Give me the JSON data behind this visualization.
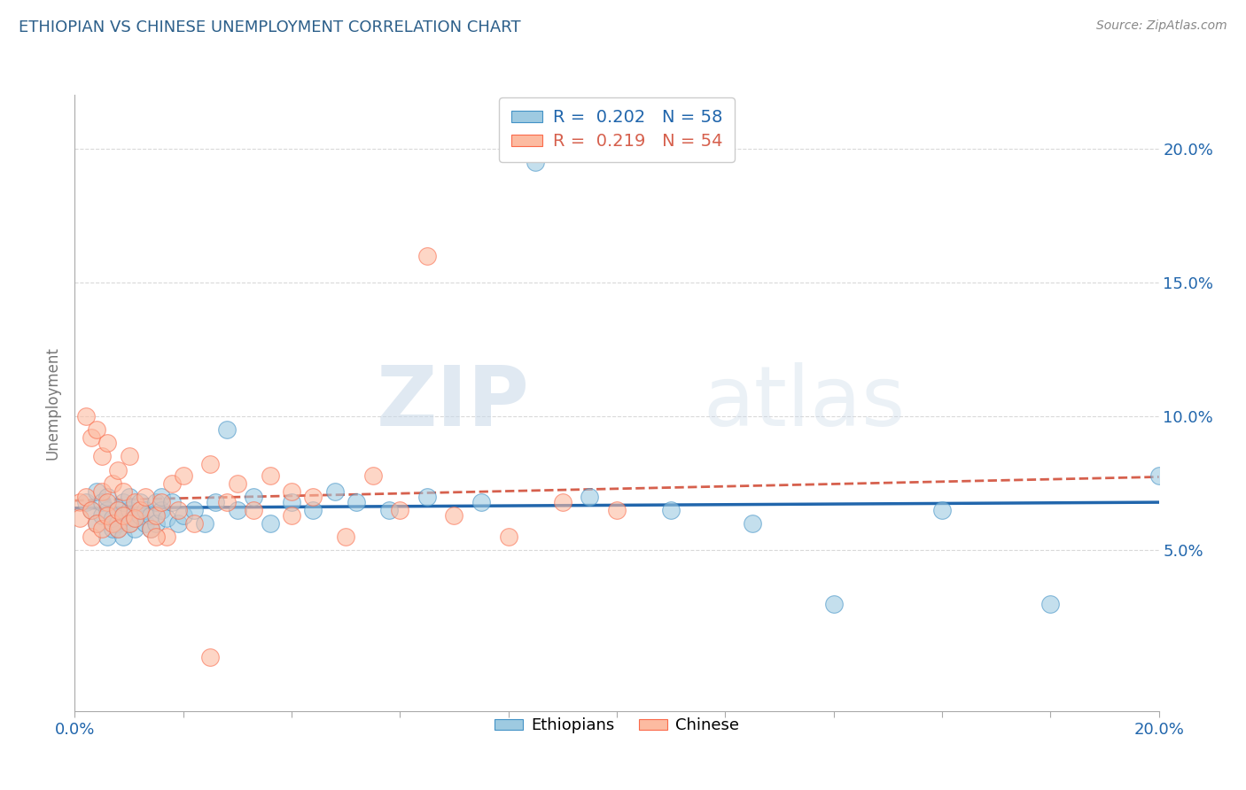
{
  "title": "ETHIOPIAN VS CHINESE UNEMPLOYMENT CORRELATION CHART",
  "source": "Source: ZipAtlas.com",
  "ylabel": "Unemployment",
  "xlim": [
    0.0,
    0.2
  ],
  "ylim": [
    -0.01,
    0.22
  ],
  "legend_R_ethiopian": "R =  0.202",
  "legend_N_ethiopian": "N = 58",
  "legend_R_chinese": "R =  0.219",
  "legend_N_chinese": "N = 54",
  "watermark_zip": "ZIP",
  "watermark_atlas": "atlas",
  "blue_scatter_color": "#9ecae1",
  "blue_scatter_edge": "#4292c6",
  "pink_scatter_color": "#fcbba1",
  "pink_scatter_edge": "#fb6a4a",
  "blue_line_color": "#2166ac",
  "pink_line_color": "#d6604d",
  "pink_dash_color": "#d6604d",
  "grid_color": "#d0d0d0",
  "background_color": "#ffffff",
  "title_color": "#2c5f8a",
  "axis_label_color": "#2166ac",
  "source_color": "#888888",
  "ethiopian_x": [
    0.002,
    0.003,
    0.004,
    0.004,
    0.005,
    0.005,
    0.006,
    0.006,
    0.006,
    0.007,
    0.007,
    0.008,
    0.008,
    0.008,
    0.009,
    0.009,
    0.009,
    0.01,
    0.01,
    0.01,
    0.011,
    0.011,
    0.012,
    0.012,
    0.013,
    0.013,
    0.014,
    0.014,
    0.015,
    0.015,
    0.016,
    0.016,
    0.017,
    0.018,
    0.019,
    0.02,
    0.022,
    0.024,
    0.026,
    0.028,
    0.03,
    0.033,
    0.036,
    0.04,
    0.044,
    0.048,
    0.052,
    0.058,
    0.065,
    0.075,
    0.085,
    0.095,
    0.11,
    0.125,
    0.14,
    0.16,
    0.18,
    0.2
  ],
  "ethiopian_y": [
    0.068,
    0.065,
    0.06,
    0.072,
    0.063,
    0.068,
    0.055,
    0.065,
    0.07,
    0.058,
    0.062,
    0.06,
    0.065,
    0.058,
    0.063,
    0.068,
    0.055,
    0.06,
    0.065,
    0.07,
    0.058,
    0.062,
    0.063,
    0.068,
    0.06,
    0.065,
    0.058,
    0.063,
    0.068,
    0.06,
    0.065,
    0.07,
    0.062,
    0.068,
    0.06,
    0.063,
    0.065,
    0.06,
    0.068,
    0.095,
    0.065,
    0.07,
    0.06,
    0.068,
    0.065,
    0.072,
    0.068,
    0.065,
    0.07,
    0.068,
    0.195,
    0.07,
    0.065,
    0.06,
    0.03,
    0.065,
    0.03,
    0.078
  ],
  "chinese_x": [
    0.001,
    0.001,
    0.002,
    0.002,
    0.003,
    0.003,
    0.003,
    0.004,
    0.004,
    0.005,
    0.005,
    0.005,
    0.006,
    0.006,
    0.006,
    0.007,
    0.007,
    0.008,
    0.008,
    0.008,
    0.009,
    0.009,
    0.01,
    0.01,
    0.011,
    0.011,
    0.012,
    0.013,
    0.014,
    0.015,
    0.016,
    0.017,
    0.018,
    0.019,
    0.02,
    0.022,
    0.025,
    0.028,
    0.03,
    0.033,
    0.036,
    0.04,
    0.044,
    0.05,
    0.055,
    0.06,
    0.065,
    0.07,
    0.08,
    0.09,
    0.1,
    0.04,
    0.025,
    0.015
  ],
  "chinese_y": [
    0.068,
    0.062,
    0.1,
    0.07,
    0.065,
    0.055,
    0.092,
    0.06,
    0.095,
    0.072,
    0.058,
    0.085,
    0.068,
    0.063,
    0.09,
    0.06,
    0.075,
    0.058,
    0.065,
    0.08,
    0.063,
    0.072,
    0.06,
    0.085,
    0.068,
    0.062,
    0.065,
    0.07,
    0.058,
    0.063,
    0.068,
    0.055,
    0.075,
    0.065,
    0.078,
    0.06,
    0.082,
    0.068,
    0.075,
    0.065,
    0.078,
    0.063,
    0.07,
    0.055,
    0.078,
    0.065,
    0.16,
    0.063,
    0.055,
    0.068,
    0.065,
    0.072,
    0.01,
    0.055
  ]
}
